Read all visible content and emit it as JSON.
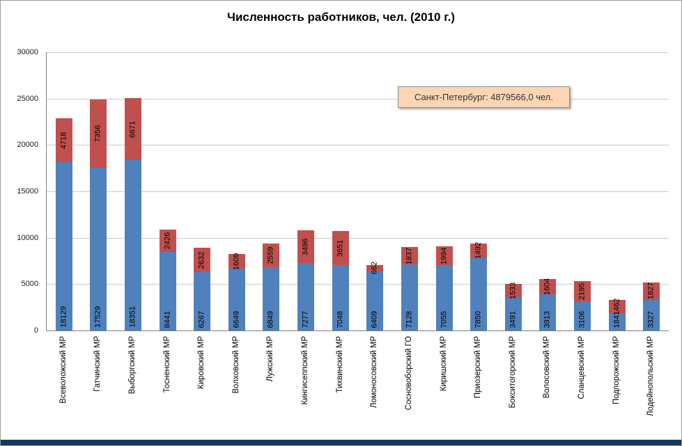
{
  "window": {
    "bottom_bar_color": "#17365d"
  },
  "chart_data": {
    "type": "bar",
    "stacked": true,
    "title": "Численность работников, чел. (2010 г.)",
    "xlabel": "",
    "ylabel": "",
    "ylim": [
      0,
      30000
    ],
    "ytick_step": 5000,
    "grid": true,
    "legend": false,
    "categories": [
      "Всеволожский МР",
      "Гатчинский МР",
      "Выборгский МР",
      "Тосненский МР",
      "Кировский МР",
      "Волховский МР",
      "Лужский МР",
      "Кингисеппский МР",
      "Тихвинский МР",
      "Ломоносовский МР",
      "Сосновоборский ГО",
      "Киришский МР",
      "Приозерский МР",
      "Бокситогорский МР",
      "Волосовский МР",
      "Сланцевский МР",
      "Подпорожский МР",
      "Лодейнопольский МР"
    ],
    "series": [
      {
        "name": "lower-segment",
        "color": "#4f81bd",
        "values": [
          18129,
          17529,
          18351,
          8441,
          6267,
          6649,
          6849,
          7277,
          7048,
          6409,
          7128,
          7055,
          7850,
          3491,
          3913,
          3106,
          1841,
          3327
        ]
      },
      {
        "name": "upper-segment",
        "color": "#c0504d",
        "values": [
          4718,
          7356,
          6671,
          2426,
          2632,
          1609,
          2559,
          3496,
          3651,
          662,
          1837,
          1994,
          1492,
          1533,
          1604,
          2195,
          1462,
          1827
        ]
      }
    ],
    "annotation": "Санкт-Петербург: 4879566,0 чел.",
    "annotation_bg": "#fbd5b4",
    "annotation_text_color": "#333333"
  }
}
